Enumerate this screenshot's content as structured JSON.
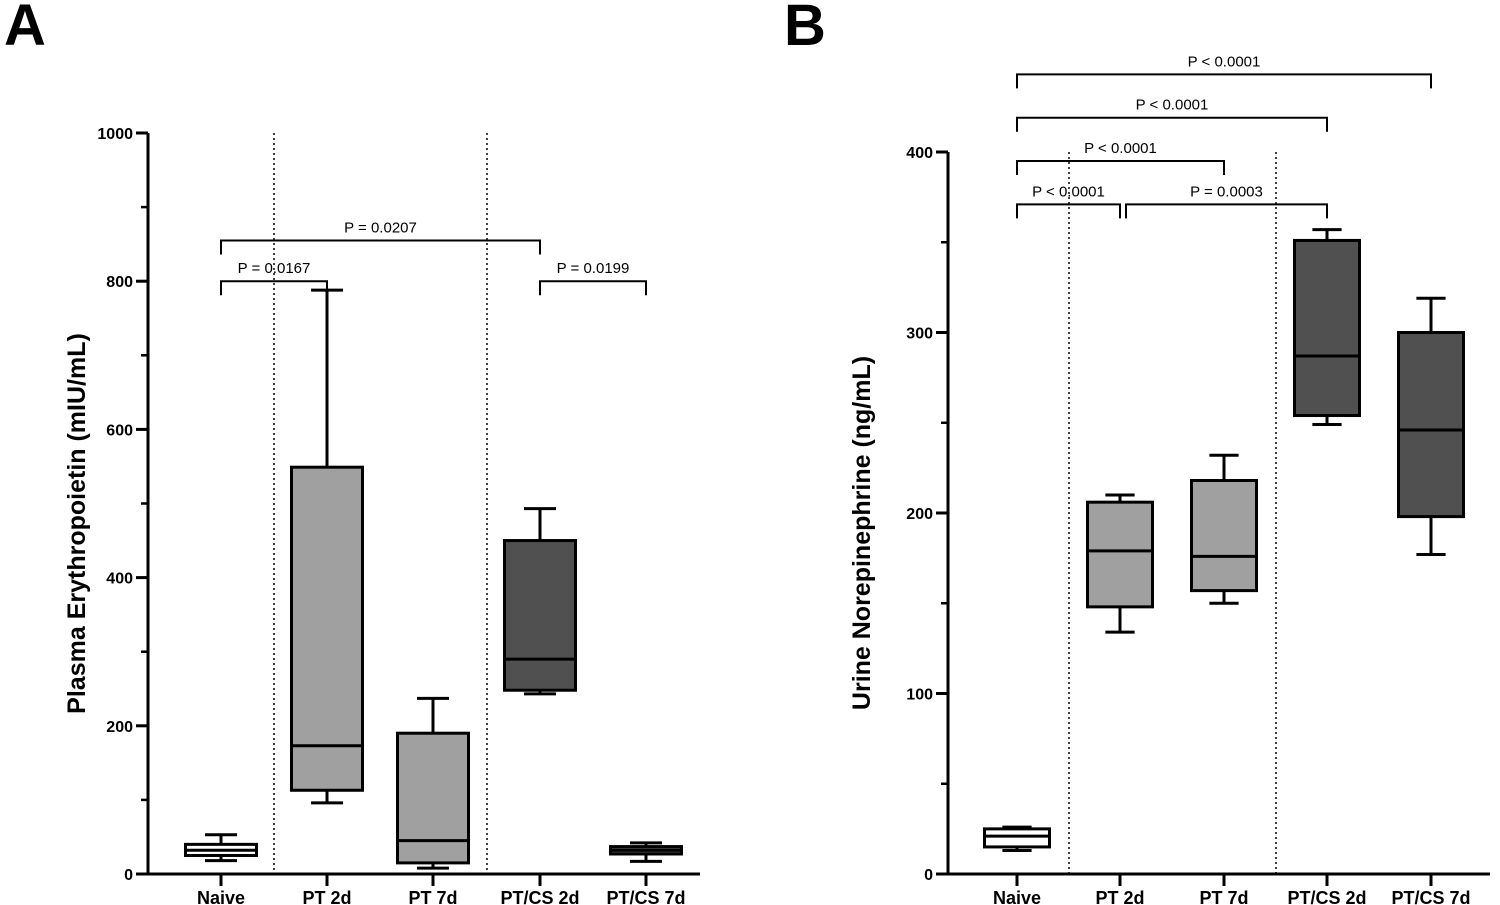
{
  "chart_data": [
    {
      "panel_label": "A",
      "type": "box",
      "ylabel": "Plasma Erythropoietin (mIU/mL)",
      "ylim": [
        0,
        1000
      ],
      "yticks": [
        0,
        200,
        400,
        600,
        800,
        1000
      ],
      "yminor_step": 100,
      "categories": [
        "Naive",
        "PT 2d",
        "PT 7d",
        "PT/CS 2d",
        "PT/CS 7d"
      ],
      "fill_colors": [
        "#ffffff",
        "#a0a0a0",
        "#a0a0a0",
        "#505050",
        "#505050"
      ],
      "boxes": [
        {
          "min": 18,
          "q1": 25,
          "median": 32,
          "q3": 40,
          "max": 53
        },
        {
          "min": 96,
          "q1": 113,
          "median": 173,
          "q3": 549,
          "max": 788
        },
        {
          "min": 8,
          "q1": 15,
          "median": 45,
          "q3": 190,
          "max": 237
        },
        {
          "min": 243,
          "q1": 248,
          "median": 290,
          "q3": 450,
          "max": 493
        },
        {
          "min": 17,
          "q1": 27,
          "median": 32,
          "q3": 37,
          "max": 42
        }
      ],
      "group_dividers_after": [
        0,
        2
      ],
      "comparisons": [
        {
          "from": 0,
          "to": 1,
          "label": "P = 0.0167",
          "level": 800
        },
        {
          "from": 0,
          "to": 3,
          "label": "P = 0.0207",
          "level": 855
        },
        {
          "from": 3,
          "to": 4,
          "label": "P = 0.0199",
          "level": 800
        }
      ]
    },
    {
      "panel_label": "B",
      "type": "box",
      "ylabel": "Urine Norepinephrine (ng/mL)",
      "ylim": [
        0,
        400
      ],
      "yticks": [
        0,
        100,
        200,
        300,
        400
      ],
      "yminor_step": 50,
      "categories": [
        "Naive",
        "PT 2d",
        "PT 7d",
        "PT/CS 2d",
        "PT/CS 7d"
      ],
      "fill_colors": [
        "#ffffff",
        "#a0a0a0",
        "#a0a0a0",
        "#505050",
        "#505050"
      ],
      "boxes": [
        {
          "min": 13,
          "q1": 15,
          "median": 21,
          "q3": 25,
          "max": 26
        },
        {
          "min": 134,
          "q1": 148,
          "median": 179,
          "q3": 206,
          "max": 210
        },
        {
          "min": 150,
          "q1": 157,
          "median": 176,
          "q3": 218,
          "max": 232
        },
        {
          "min": 249,
          "q1": 254,
          "median": 287,
          "q3": 351,
          "max": 357
        },
        {
          "min": 177,
          "q1": 198,
          "median": 246,
          "q3": 300,
          "max": 319
        }
      ],
      "group_dividers_after": [
        0,
        2
      ],
      "comparisons": [
        {
          "from": 0,
          "to": 1,
          "label": "P < 0.0001",
          "level": 371
        },
        {
          "from": 1,
          "to": 3,
          "label": "P = 0.0003",
          "level": 371
        },
        {
          "from": 0,
          "to": 2,
          "label": "P < 0.0001",
          "level": 395
        },
        {
          "from": 0,
          "to": 3,
          "label": "P < 0.0001",
          "level": 419
        },
        {
          "from": 0,
          "to": 4,
          "label": "P < 0.0001",
          "level": 443
        }
      ]
    }
  ]
}
